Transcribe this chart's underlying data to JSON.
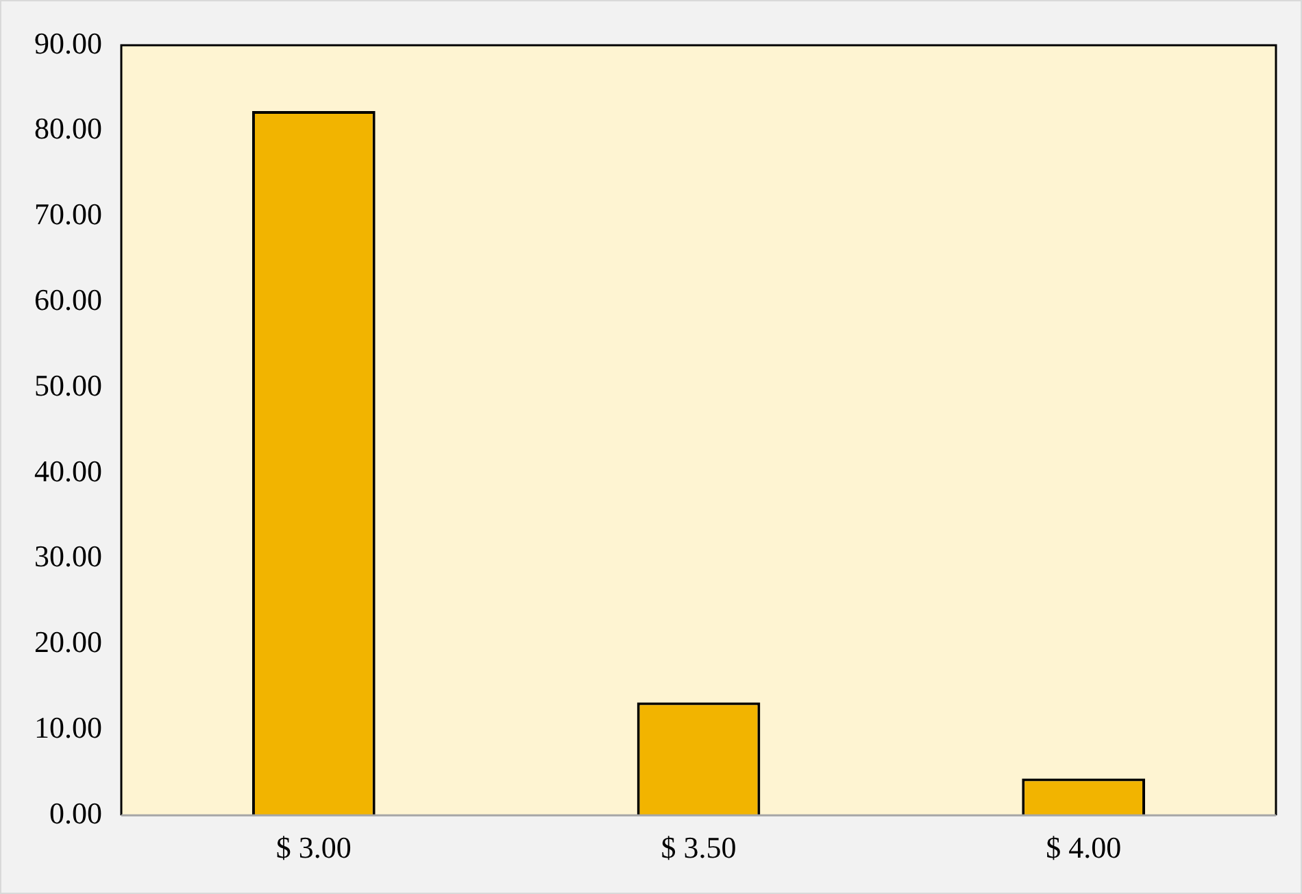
{
  "chart_data": {
    "type": "bar",
    "categories": [
      "$ 3.00",
      "$ 3.50",
      "$ 4.00"
    ],
    "values": [
      82.3,
      13.2,
      4.3
    ],
    "color": "#f2b400",
    "ylim": [
      0,
      90
    ],
    "yticks": [
      {
        "value": 0,
        "label": "0.00"
      },
      {
        "value": 10,
        "label": "10.00"
      },
      {
        "value": 20,
        "label": "20.00"
      },
      {
        "value": 30,
        "label": "30.00"
      },
      {
        "value": 40,
        "label": "40.00"
      },
      {
        "value": 50,
        "label": "50.00"
      },
      {
        "value": 60,
        "label": "60.00"
      },
      {
        "value": 70,
        "label": "70.00"
      },
      {
        "value": 80,
        "label": "80.00"
      },
      {
        "value": 90,
        "label": "90.00"
      }
    ],
    "grid": false,
    "legend": false
  }
}
